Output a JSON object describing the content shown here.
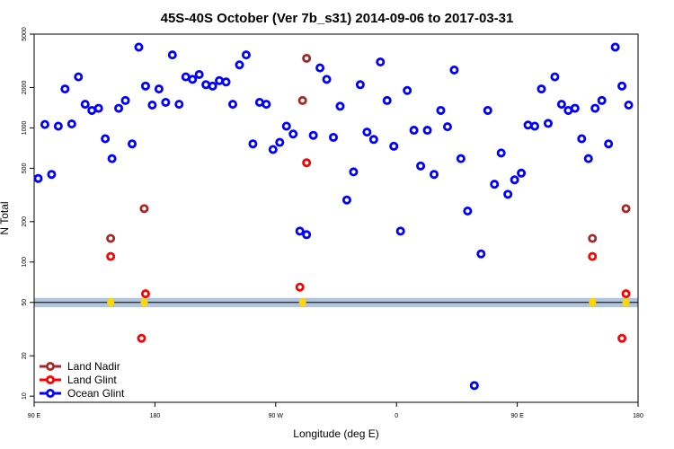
{
  "chart_data": {
    "type": "scatter",
    "title": "45S-40S October (Ver 7b_s31)   2014-09-06 to 2017-03-31",
    "xlabel": "Longitude (deg E)",
    "ylabel": "N Total",
    "y_scale": "log",
    "ylim": [
      9,
      5000
    ],
    "x_ticks": [
      {
        "value": 0,
        "label": "90 E"
      },
      {
        "value": 90,
        "label": "180"
      },
      {
        "value": 180,
        "label": "90 W"
      },
      {
        "value": 270,
        "label": "0"
      },
      {
        "value": 360,
        "label": "90 E"
      },
      {
        "value": 450,
        "label": "180"
      }
    ],
    "xlim": [
      0,
      450
    ],
    "y_ticks": [
      10,
      20,
      50,
      100,
      200,
      500,
      1000,
      2000,
      5000
    ],
    "threshold": {
      "value": 50,
      "band": [
        46,
        54
      ]
    },
    "legend_position": "bottom-left",
    "colors": {
      "land_nadir": "#a52a2a",
      "land_glint": "#ff0000",
      "ocean_glint": "#0000ff",
      "band": "#b0c4de",
      "band_line": "#000000",
      "highlight": "#ffd700"
    },
    "series": [
      {
        "name": "Land Nadir",
        "color_key": "land_nadir",
        "points": [
          [
            57,
            150
          ],
          [
            82,
            250
          ],
          [
            200,
            1600
          ],
          [
            203,
            3300
          ],
          [
            416,
            150
          ],
          [
            441,
            250
          ]
        ]
      },
      {
        "name": "Land Glint",
        "color_key": "land_glint",
        "points": [
          [
            57,
            110
          ],
          [
            80,
            27
          ],
          [
            83,
            58
          ],
          [
            198,
            65
          ],
          [
            203,
            550
          ],
          [
            416,
            110
          ],
          [
            438,
            27
          ],
          [
            441,
            58
          ]
        ]
      },
      {
        "name": "Ocean Glint",
        "color_key": "ocean_glint",
        "points": [
          [
            3,
            420
          ],
          [
            8,
            1060
          ],
          [
            13,
            450
          ],
          [
            18,
            1030
          ],
          [
            23,
            1950
          ],
          [
            28,
            1070
          ],
          [
            33,
            2400
          ],
          [
            38,
            1500
          ],
          [
            43,
            1350
          ],
          [
            48,
            1400
          ],
          [
            53,
            830
          ],
          [
            58,
            590
          ],
          [
            63,
            1400
          ],
          [
            68,
            1600
          ],
          [
            73,
            760
          ],
          [
            78,
            4000
          ],
          [
            83,
            2050
          ],
          [
            88,
            1480
          ],
          [
            93,
            1950
          ],
          [
            98,
            1550
          ],
          [
            103,
            3500
          ],
          [
            108,
            1500
          ],
          [
            113,
            2400
          ],
          [
            118,
            2300
          ],
          [
            123,
            2500
          ],
          [
            128,
            2100
          ],
          [
            133,
            2050
          ],
          [
            138,
            2250
          ],
          [
            143,
            2200
          ],
          [
            148,
            1500
          ],
          [
            153,
            2950
          ],
          [
            158,
            3500
          ],
          [
            163,
            760
          ],
          [
            168,
            1550
          ],
          [
            173,
            1500
          ],
          [
            178,
            690
          ],
          [
            183,
            780
          ],
          [
            188,
            1030
          ],
          [
            193,
            900
          ],
          [
            198,
            170
          ],
          [
            203,
            160
          ],
          [
            208,
            880
          ],
          [
            213,
            2800
          ],
          [
            218,
            2300
          ],
          [
            223,
            850
          ],
          [
            228,
            1450
          ],
          [
            233,
            290
          ],
          [
            238,
            470
          ],
          [
            243,
            2100
          ],
          [
            248,
            930
          ],
          [
            253,
            820
          ],
          [
            258,
            3100
          ],
          [
            263,
            1600
          ],
          [
            268,
            730
          ],
          [
            273,
            170
          ],
          [
            278,
            1900
          ],
          [
            283,
            960
          ],
          [
            288,
            520
          ],
          [
            293,
            960
          ],
          [
            298,
            450
          ],
          [
            303,
            1350
          ],
          [
            308,
            1020
          ],
          [
            313,
            2700
          ],
          [
            318,
            590
          ],
          [
            323,
            240
          ],
          [
            328,
            12
          ],
          [
            333,
            115
          ],
          [
            338,
            1350
          ],
          [
            343,
            380
          ],
          [
            348,
            650
          ],
          [
            353,
            320
          ],
          [
            358,
            410
          ],
          [
            363,
            460
          ],
          [
            368,
            1050
          ],
          [
            373,
            1030
          ],
          [
            378,
            1950
          ],
          [
            383,
            1080
          ],
          [
            388,
            2400
          ],
          [
            393,
            1500
          ],
          [
            398,
            1350
          ],
          [
            403,
            1400
          ],
          [
            408,
            830
          ],
          [
            413,
            590
          ],
          [
            418,
            1400
          ],
          [
            423,
            1600
          ],
          [
            428,
            760
          ],
          [
            433,
            4000
          ],
          [
            438,
            2050
          ],
          [
            443,
            1480
          ]
        ]
      }
    ],
    "highlights": [
      [
        57,
        50
      ],
      [
        82,
        50
      ],
      [
        200,
        50
      ],
      [
        416,
        50
      ],
      [
        441,
        50
      ]
    ]
  }
}
